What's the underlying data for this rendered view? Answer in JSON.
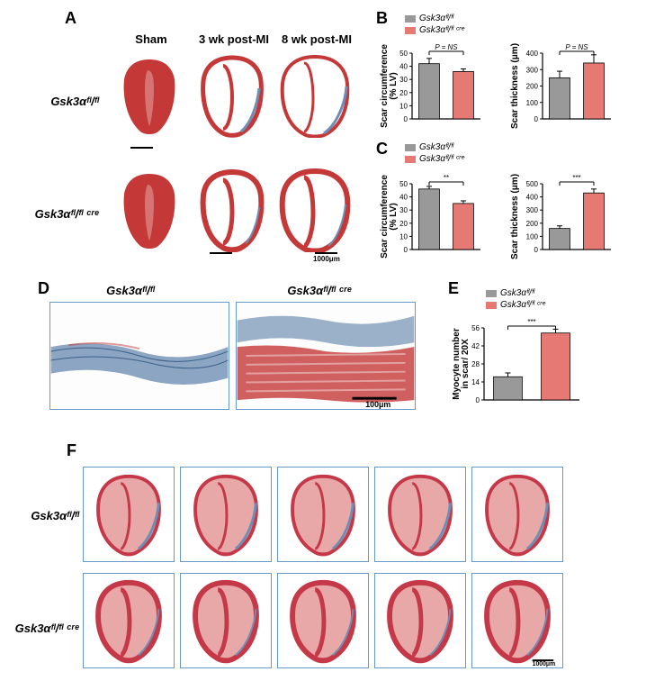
{
  "panelA": {
    "label": "A",
    "columns": [
      "Sham",
      "3 wk post-MI",
      "8 wk post-MI"
    ],
    "rows": [
      "Gsk3αᶠˡ/ᶠˡ",
      "Gsk3αᶠˡ/ᶠˡ ᶜʳᵉ"
    ],
    "heart_fill": "#c43838",
    "heart_light": "#e89090",
    "heart_blue": "#6b8fb5",
    "scale_label": "1000μm"
  },
  "panelB": {
    "label": "B",
    "legend_items": [
      {
        "label": "Gsk3αᶠˡ/ᶠˡ",
        "color": "#999999"
      },
      {
        "label": "Gsk3αᶠˡ/ᶠˡ ᶜʳᵉ",
        "color": "#e77975"
      }
    ],
    "chart1": {
      "ylabel": "Scar circumference\n(% LV)",
      "ymax": 50,
      "ytick": 10,
      "bars": [
        {
          "value": 42,
          "err": 4,
          "color": "#999999"
        },
        {
          "value": 36,
          "err": 2,
          "color": "#e77975"
        }
      ],
      "sig": "P = NS",
      "bg": "#ffffff",
      "axis_color": "#000",
      "bar_width": 0.6
    },
    "chart2": {
      "ylabel": "Scar thickness (μm)",
      "ymax": 400,
      "ytick": 100,
      "bars": [
        {
          "value": 250,
          "err": 40,
          "color": "#999999"
        },
        {
          "value": 340,
          "err": 50,
          "color": "#e77975"
        }
      ],
      "sig": "P = NS",
      "bg": "#ffffff",
      "axis_color": "#000",
      "bar_width": 0.6
    }
  },
  "panelC": {
    "label": "C",
    "legend_items": [
      {
        "label": "Gsk3αᶠˡ/ᶠˡ",
        "color": "#999999"
      },
      {
        "label": "Gsk3αᶠˡ/ᶠˡ ᶜʳᵉ",
        "color": "#e77975"
      }
    ],
    "chart1": {
      "ylabel": "Scar circumference\n(% LV)",
      "ymax": 50,
      "ytick": 10,
      "bars": [
        {
          "value": 46,
          "err": 2,
          "color": "#999999"
        },
        {
          "value": 35,
          "err": 2,
          "color": "#e77975"
        }
      ],
      "sig": "**",
      "bg": "#ffffff",
      "axis_color": "#000",
      "bar_width": 0.6
    },
    "chart2": {
      "ylabel": "Scar thickness (μm)",
      "ymax": 500,
      "ytick": 100,
      "bars": [
        {
          "value": 160,
          "err": 20,
          "color": "#999999"
        },
        {
          "value": 430,
          "err": 30,
          "color": "#e77975"
        }
      ],
      "sig": "***",
      "bg": "#ffffff",
      "axis_color": "#000",
      "bar_width": 0.6
    }
  },
  "panelD": {
    "label": "D",
    "headers": [
      "Gsk3αᶠˡ/ᶠˡ",
      "Gsk3αᶠˡ/ᶠˡ ᶜʳᵉ"
    ],
    "collagen_color": "#5a7fa8",
    "muscle_color": "#c43838",
    "scale_label": "100μm"
  },
  "panelE": {
    "label": "E",
    "legend_items": [
      {
        "label": "Gsk3αᶠˡ/ᶠˡ",
        "color": "#999999"
      },
      {
        "label": "Gsk3αᶠˡ/ᶠˡ ᶜʳᵉ",
        "color": "#e77975"
      }
    ],
    "chart": {
      "ylabel": "Myocyte number\nin scar/ 20X",
      "ymax": 56,
      "ytick": 14,
      "bars": [
        {
          "value": 18,
          "err": 3,
          "color": "#999999"
        },
        {
          "value": 52,
          "err": 3,
          "color": "#e77975"
        }
      ],
      "sig": "***",
      "bg": "#ffffff",
      "axis_color": "#000",
      "bar_width": 0.6
    }
  },
  "panelF": {
    "label": "F",
    "rows": [
      "Gsk3αᶠˡ/ᶠˡ",
      "Gsk3αᶠˡ/ᶠˡ ᶜʳᵉ"
    ],
    "heart_fill": "#c43848",
    "heart_blue": "#6b8fb5",
    "scale_label": "1000μm",
    "n_cols": 5
  },
  "fonts": {
    "panel_label_size": 18,
    "header_size": 13,
    "axis_label_size": 10,
    "tick_size": 8,
    "legend_size": 10
  }
}
